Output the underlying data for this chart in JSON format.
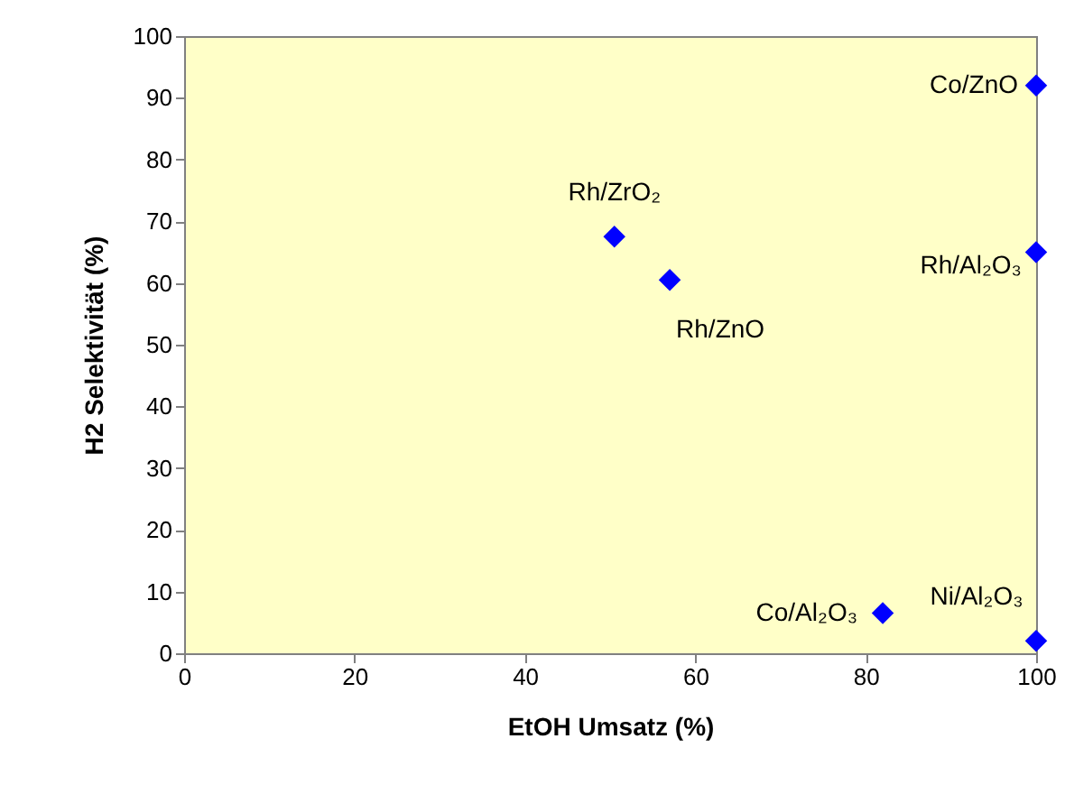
{
  "chart_data": {
    "type": "scatter",
    "xlabel": "EtOH Umsatz (%)",
    "ylabel": "H2 Selektivität (%)",
    "x": [
      100,
      50.5,
      57,
      100,
      82,
      100
    ],
    "series": [
      {
        "color": "#0000ff",
        "values": [
          92,
          67.5,
          60.5,
          65,
          6.5,
          2
        ]
      }
    ],
    "marker": "diamond",
    "xlim": [
      0,
      100
    ],
    "xticks": [
      0,
      20,
      40,
      60,
      80,
      100
    ],
    "ylim": [
      0,
      100
    ],
    "yticks": [
      0,
      10,
      20,
      30,
      40,
      50,
      60,
      70,
      80,
      90,
      100
    ],
    "grid": false,
    "annotations": [
      {
        "text": "Co/ZnO",
        "x": 100,
        "y": 92
      },
      {
        "text": "Rh/ZrO₂",
        "x": 50.5,
        "y": 67.5
      },
      {
        "text": "Rh/ZnO",
        "x": 57,
        "y": 60.5
      },
      {
        "text": "Rh/Al₂O₃",
        "x": 100,
        "y": 65
      },
      {
        "text": "Co/Al₂O₃",
        "x": 82,
        "y": 6.5
      },
      {
        "text": "Ni/Al₂O₃",
        "x": 100,
        "y": 2
      }
    ]
  }
}
